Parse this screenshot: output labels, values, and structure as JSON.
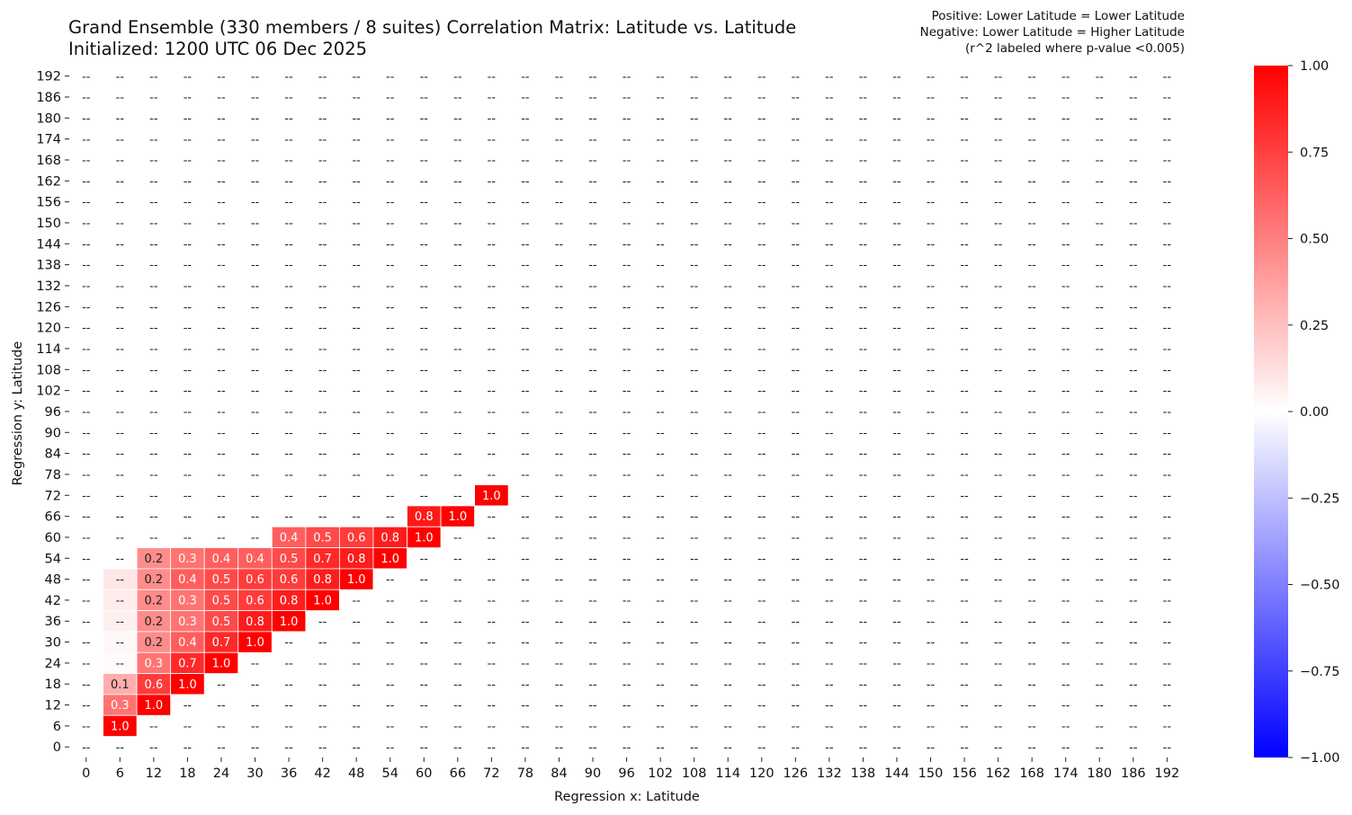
{
  "title_line1": "Grand Ensemble (330 members / 8 suites) Correlation Matrix: Latitude vs. Latitude",
  "title_line2": "Initialized: 1200 UTC 06 Dec 2025",
  "note_line1": "Positive: Lower Latitude = Lower Latitude",
  "note_line2": "Negative: Lower Latitude = Higher Latitude",
  "note_line3": "(r^2 labeled where p-value <0.005)",
  "chart_data": {
    "type": "heatmap",
    "xlabel": "Regression x: Latitude",
    "ylabel": "Regression y: Latitude",
    "x": [
      0,
      6,
      12,
      18,
      24,
      30,
      36,
      42,
      48,
      54,
      60,
      66,
      72,
      78,
      84,
      90,
      96,
      102,
      108,
      114,
      120,
      126,
      132,
      138,
      144,
      150,
      156,
      162,
      168,
      174,
      180,
      186,
      192
    ],
    "y": [
      192,
      186,
      180,
      174,
      168,
      162,
      156,
      150,
      144,
      138,
      132,
      126,
      120,
      114,
      108,
      102,
      96,
      90,
      84,
      78,
      72,
      66,
      60,
      54,
      48,
      42,
      36,
      30,
      24,
      18,
      12,
      6,
      0
    ],
    "empty_label": "--",
    "colorbar": {
      "range": [
        -1.0,
        1.0
      ],
      "colors": [
        "#0000ff",
        "#ffffff",
        "#ff0000"
      ],
      "ticks": [
        "1.00",
        "0.75",
        "0.50",
        "0.25",
        "0.00",
        "−0.25",
        "−0.50",
        "−0.75",
        "−1.00"
      ]
    },
    "cells": [
      {
        "x": 72,
        "y": 72,
        "r": 1.0,
        "label": "1.0"
      },
      {
        "x": 60,
        "y": 66,
        "r": 0.9,
        "label": "0.8"
      },
      {
        "x": 66,
        "y": 66,
        "r": 1.0,
        "label": "1.0"
      },
      {
        "x": 36,
        "y": 60,
        "r": 0.63,
        "label": "0.4"
      },
      {
        "x": 42,
        "y": 60,
        "r": 0.71,
        "label": "0.5"
      },
      {
        "x": 48,
        "y": 60,
        "r": 0.77,
        "label": "0.6"
      },
      {
        "x": 54,
        "y": 60,
        "r": 0.89,
        "label": "0.8"
      },
      {
        "x": 60,
        "y": 60,
        "r": 1.0,
        "label": "1.0"
      },
      {
        "x": 12,
        "y": 54,
        "r": 0.45,
        "label": "0.2"
      },
      {
        "x": 18,
        "y": 54,
        "r": 0.55,
        "label": "0.3"
      },
      {
        "x": 24,
        "y": 54,
        "r": 0.63,
        "label": "0.4"
      },
      {
        "x": 30,
        "y": 54,
        "r": 0.63,
        "label": "0.4"
      },
      {
        "x": 36,
        "y": 54,
        "r": 0.71,
        "label": "0.5"
      },
      {
        "x": 42,
        "y": 54,
        "r": 0.84,
        "label": "0.7"
      },
      {
        "x": 48,
        "y": 54,
        "r": 0.89,
        "label": "0.8"
      },
      {
        "x": 54,
        "y": 54,
        "r": 1.0,
        "label": "1.0"
      },
      {
        "x": 6,
        "y": 48,
        "r": 0.1,
        "label": "--"
      },
      {
        "x": 12,
        "y": 48,
        "r": 0.45,
        "label": "0.2"
      },
      {
        "x": 18,
        "y": 48,
        "r": 0.63,
        "label": "0.4"
      },
      {
        "x": 24,
        "y": 48,
        "r": 0.71,
        "label": "0.5"
      },
      {
        "x": 30,
        "y": 48,
        "r": 0.77,
        "label": "0.6"
      },
      {
        "x": 36,
        "y": 48,
        "r": 0.77,
        "label": "0.6"
      },
      {
        "x": 42,
        "y": 48,
        "r": 0.89,
        "label": "0.8"
      },
      {
        "x": 48,
        "y": 48,
        "r": 1.0,
        "label": "1.0"
      },
      {
        "x": 6,
        "y": 42,
        "r": 0.07,
        "label": "--"
      },
      {
        "x": 12,
        "y": 42,
        "r": 0.45,
        "label": "0.2"
      },
      {
        "x": 18,
        "y": 42,
        "r": 0.55,
        "label": "0.3"
      },
      {
        "x": 24,
        "y": 42,
        "r": 0.71,
        "label": "0.5"
      },
      {
        "x": 30,
        "y": 42,
        "r": 0.77,
        "label": "0.6"
      },
      {
        "x": 36,
        "y": 42,
        "r": 0.89,
        "label": "0.8"
      },
      {
        "x": 42,
        "y": 42,
        "r": 1.0,
        "label": "1.0"
      },
      {
        "x": 6,
        "y": 36,
        "r": 0.06,
        "label": "--"
      },
      {
        "x": 12,
        "y": 36,
        "r": 0.45,
        "label": "0.2"
      },
      {
        "x": 18,
        "y": 36,
        "r": 0.55,
        "label": "0.3"
      },
      {
        "x": 24,
        "y": 36,
        "r": 0.71,
        "label": "0.5"
      },
      {
        "x": 30,
        "y": 36,
        "r": 0.89,
        "label": "0.8"
      },
      {
        "x": 36,
        "y": 36,
        "r": 1.0,
        "label": "1.0"
      },
      {
        "x": 6,
        "y": 30,
        "r": 0.03,
        "label": "--"
      },
      {
        "x": 12,
        "y": 30,
        "r": 0.45,
        "label": "0.2"
      },
      {
        "x": 18,
        "y": 30,
        "r": 0.63,
        "label": "0.4"
      },
      {
        "x": 24,
        "y": 30,
        "r": 0.84,
        "label": "0.7"
      },
      {
        "x": 30,
        "y": 30,
        "r": 1.0,
        "label": "1.0"
      },
      {
        "x": 6,
        "y": 24,
        "r": 0.02,
        "label": "--"
      },
      {
        "x": 12,
        "y": 24,
        "r": 0.55,
        "label": "0.3"
      },
      {
        "x": 18,
        "y": 24,
        "r": 0.84,
        "label": "0.7"
      },
      {
        "x": 24,
        "y": 24,
        "r": 1.0,
        "label": "1.0"
      },
      {
        "x": 6,
        "y": 18,
        "r": 0.32,
        "label": "0.1"
      },
      {
        "x": 12,
        "y": 18,
        "r": 0.77,
        "label": "0.6"
      },
      {
        "x": 18,
        "y": 18,
        "r": 1.0,
        "label": "1.0"
      },
      {
        "x": 6,
        "y": 12,
        "r": 0.55,
        "label": "0.3"
      },
      {
        "x": 12,
        "y": 12,
        "r": 1.0,
        "label": "1.0"
      },
      {
        "x": 6,
        "y": 6,
        "r": 1.0,
        "label": "1.0"
      }
    ]
  }
}
